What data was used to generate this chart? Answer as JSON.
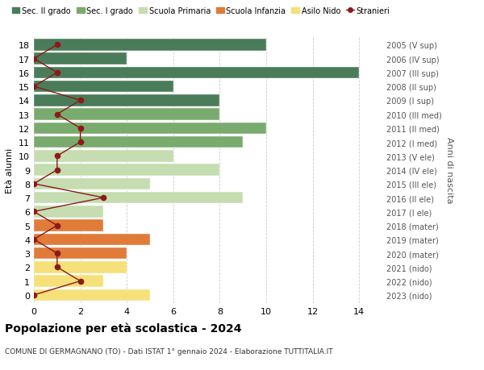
{
  "ages": [
    18,
    17,
    16,
    15,
    14,
    13,
    12,
    11,
    10,
    9,
    8,
    7,
    6,
    5,
    4,
    3,
    2,
    1,
    0
  ],
  "right_labels": [
    "2005 (V sup)",
    "2006 (IV sup)",
    "2007 (III sup)",
    "2008 (II sup)",
    "2009 (I sup)",
    "2010 (III med)",
    "2011 (II med)",
    "2012 (I med)",
    "2013 (V ele)",
    "2014 (IV ele)",
    "2015 (III ele)",
    "2016 (II ele)",
    "2017 (I ele)",
    "2018 (mater)",
    "2019 (mater)",
    "2020 (mater)",
    "2021 (nido)",
    "2022 (nido)",
    "2023 (nido)"
  ],
  "bar_values": [
    10,
    4,
    14,
    6,
    8,
    8,
    10,
    9,
    6,
    8,
    5,
    9,
    3,
    3,
    5,
    4,
    4,
    3,
    5
  ],
  "bar_colors": [
    "#4a7c59",
    "#4a7c59",
    "#4a7c59",
    "#4a7c59",
    "#4a7c59",
    "#7aab6e",
    "#7aab6e",
    "#7aab6e",
    "#c5ddb0",
    "#c5ddb0",
    "#c5ddb0",
    "#c5ddb0",
    "#c5ddb0",
    "#e07b39",
    "#e07b39",
    "#e07b39",
    "#f5e07a",
    "#f5e07a",
    "#f5e07a"
  ],
  "stranieri_values": [
    1,
    0,
    1,
    0,
    2,
    1,
    2,
    2,
    1,
    1,
    0,
    3,
    0,
    1,
    0,
    1,
    1,
    2,
    0
  ],
  "stranieri_color": "#8b1a1a",
  "legend_items": [
    {
      "label": "Sec. II grado",
      "color": "#4a7c59"
    },
    {
      "label": "Sec. I grado",
      "color": "#7aab6e"
    },
    {
      "label": "Scuola Primaria",
      "color": "#c5ddb0"
    },
    {
      "label": "Scuola Infanzia",
      "color": "#e07b39"
    },
    {
      "label": "Asilo Nido",
      "color": "#f5e07a"
    },
    {
      "label": "Stranieri",
      "color": "#8b1a1a"
    }
  ],
  "ylabel": "Età alunni",
  "right_ylabel": "Anni di nascita",
  "title": "Popolazione per età scolastica - 2024",
  "subtitle": "COMUNE DI GERMAGNANO (TO) - Dati ISTAT 1° gennaio 2024 - Elaborazione TUTTITALIA.IT",
  "xlim": [
    0,
    15
  ],
  "xticks": [
    0,
    2,
    4,
    6,
    8,
    10,
    12,
    14
  ],
  "background_color": "#ffffff",
  "grid_color": "#cccccc",
  "bar_height": 0.85
}
